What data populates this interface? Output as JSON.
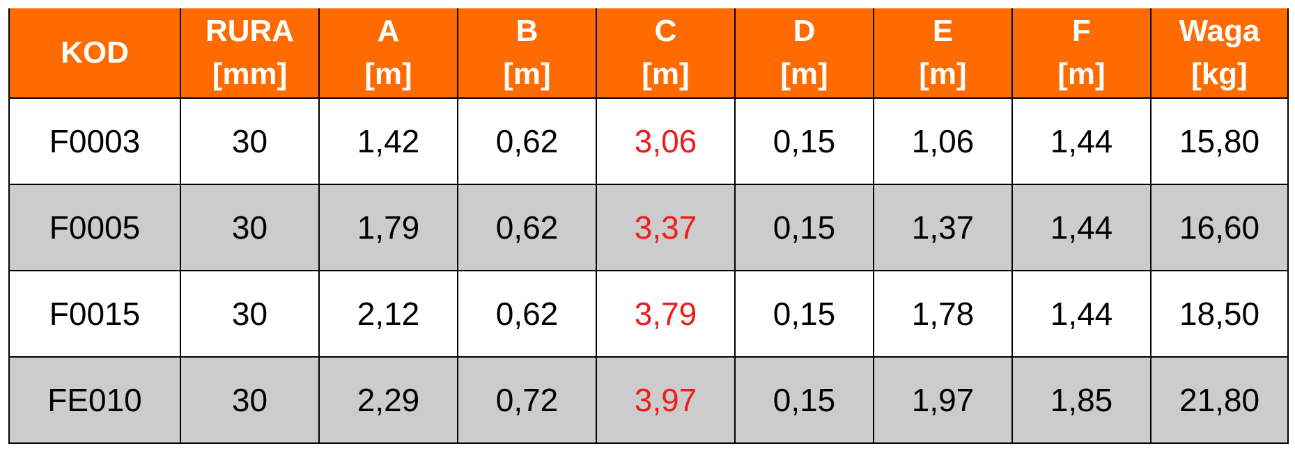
{
  "table": {
    "header": [
      [
        "KOD"
      ],
      [
        "RURA",
        "[mm]"
      ],
      [
        "A",
        "[m]"
      ],
      [
        "B",
        "[m]"
      ],
      [
        "C",
        "[m]"
      ],
      [
        "D",
        "[m]"
      ],
      [
        "E",
        "[m]"
      ],
      [
        "F",
        "[m]"
      ],
      [
        "Waga",
        "[kg]"
      ]
    ],
    "rows": [
      [
        "F0003",
        "30",
        "1,42",
        "0,62",
        "3,06",
        "0,15",
        "1,06",
        "1,44",
        "15,80"
      ],
      [
        "F0005",
        "30",
        "1,79",
        "0,62",
        "3,37",
        "0,15",
        "1,37",
        "1,44",
        "16,60"
      ],
      [
        "F0015",
        "30",
        "2,12",
        "0,62",
        "3,79",
        "0,15",
        "1,78",
        "1,44",
        "18,50"
      ],
      [
        "FE010",
        "30",
        "2,29",
        "0,72",
        "3,97",
        "0,15",
        "1,97",
        "1,85",
        "21,80"
      ]
    ]
  }
}
